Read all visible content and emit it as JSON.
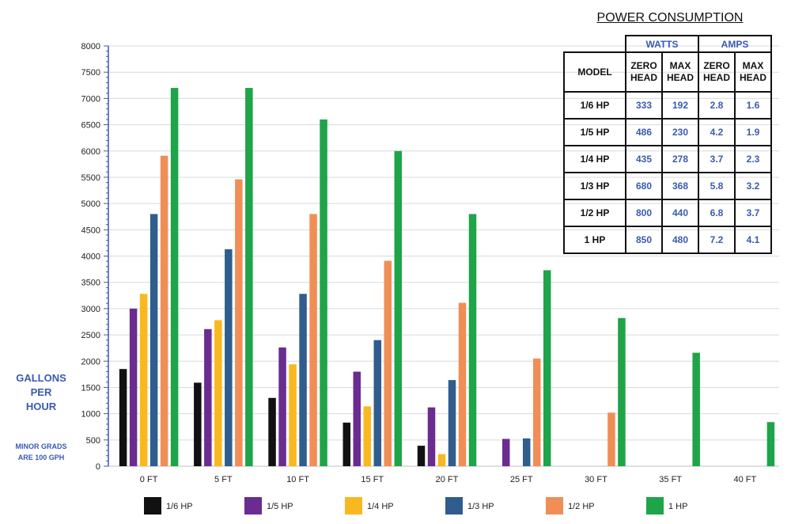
{
  "chart_data": {
    "type": "bar",
    "categories": [
      "0 FT",
      "5 FT",
      "10 FT",
      "15 FT",
      "20 FT",
      "25 FT",
      "30 FT",
      "35 FT",
      "40 FT"
    ],
    "series": [
      {
        "name": "1/6 HP",
        "color": "#111111",
        "values": [
          1850,
          1590,
          1300,
          830,
          390,
          null,
          null,
          null,
          null
        ]
      },
      {
        "name": "1/5 HP",
        "color": "#6b2c91",
        "values": [
          3000,
          2610,
          2260,
          1800,
          1120,
          520,
          null,
          null,
          null
        ]
      },
      {
        "name": "1/4 HP",
        "color": "#f9b81f",
        "values": [
          3280,
          2780,
          1940,
          1140,
          230,
          null,
          null,
          null,
          null
        ]
      },
      {
        "name": "1/3 HP",
        "color": "#2f5d8e",
        "values": [
          4800,
          4130,
          3280,
          2400,
          1640,
          530,
          null,
          null,
          null
        ]
      },
      {
        "name": "1/2 HP",
        "color": "#f08e56",
        "values": [
          5910,
          5460,
          4800,
          3910,
          3110,
          2050,
          1020,
          null,
          null
        ]
      },
      {
        "name": "1 HP",
        "color": "#1ea449",
        "values": [
          7200,
          7200,
          6600,
          6000,
          4800,
          3730,
          2820,
          2160,
          840
        ]
      }
    ],
    "ylim": [
      0,
      8000
    ],
    "yticks": [
      0,
      500,
      1000,
      1500,
      2000,
      2500,
      3000,
      3500,
      4000,
      4500,
      5000,
      5500,
      6000,
      6500,
      7000,
      7500,
      8000
    ],
    "ylabel_lines": [
      "GALLONS",
      "PER",
      "HOUR"
    ],
    "ynote_lines": [
      "MINOR GRADS",
      "ARE 100 GPH"
    ],
    "minor_tick_step": 100,
    "grid": "horizontal",
    "legend": "bottom"
  },
  "power_table": {
    "title": "POWER CONSUMPTION",
    "group_watts": "WATTS",
    "group_amps": "AMPS",
    "model_header": "MODEL",
    "col_zero_a": "ZERO",
    "col_zero_b": "HEAD",
    "col_max_a": "MAX",
    "col_max_b": "HEAD",
    "rows": [
      {
        "model": "1/6 HP",
        "watts_zero": "333",
        "watts_max": "192",
        "amps_zero": "2.8",
        "amps_max": "1.6"
      },
      {
        "model": "1/5 HP",
        "watts_zero": "486",
        "watts_max": "230",
        "amps_zero": "4.2",
        "amps_max": "1.9"
      },
      {
        "model": "1/4 HP",
        "watts_zero": "435",
        "watts_max": "278",
        "amps_zero": "3.7",
        "amps_max": "2.3"
      },
      {
        "model": "1/3 HP",
        "watts_zero": "680",
        "watts_max": "368",
        "amps_zero": "5.8",
        "amps_max": "3.2"
      },
      {
        "model": "1/2 HP",
        "watts_zero": "800",
        "watts_max": "440",
        "amps_zero": "6.8",
        "amps_max": "3.7"
      },
      {
        "model": "1 HP",
        "watts_zero": "850",
        "watts_max": "480",
        "amps_zero": "7.2",
        "amps_max": "4.1"
      }
    ]
  }
}
